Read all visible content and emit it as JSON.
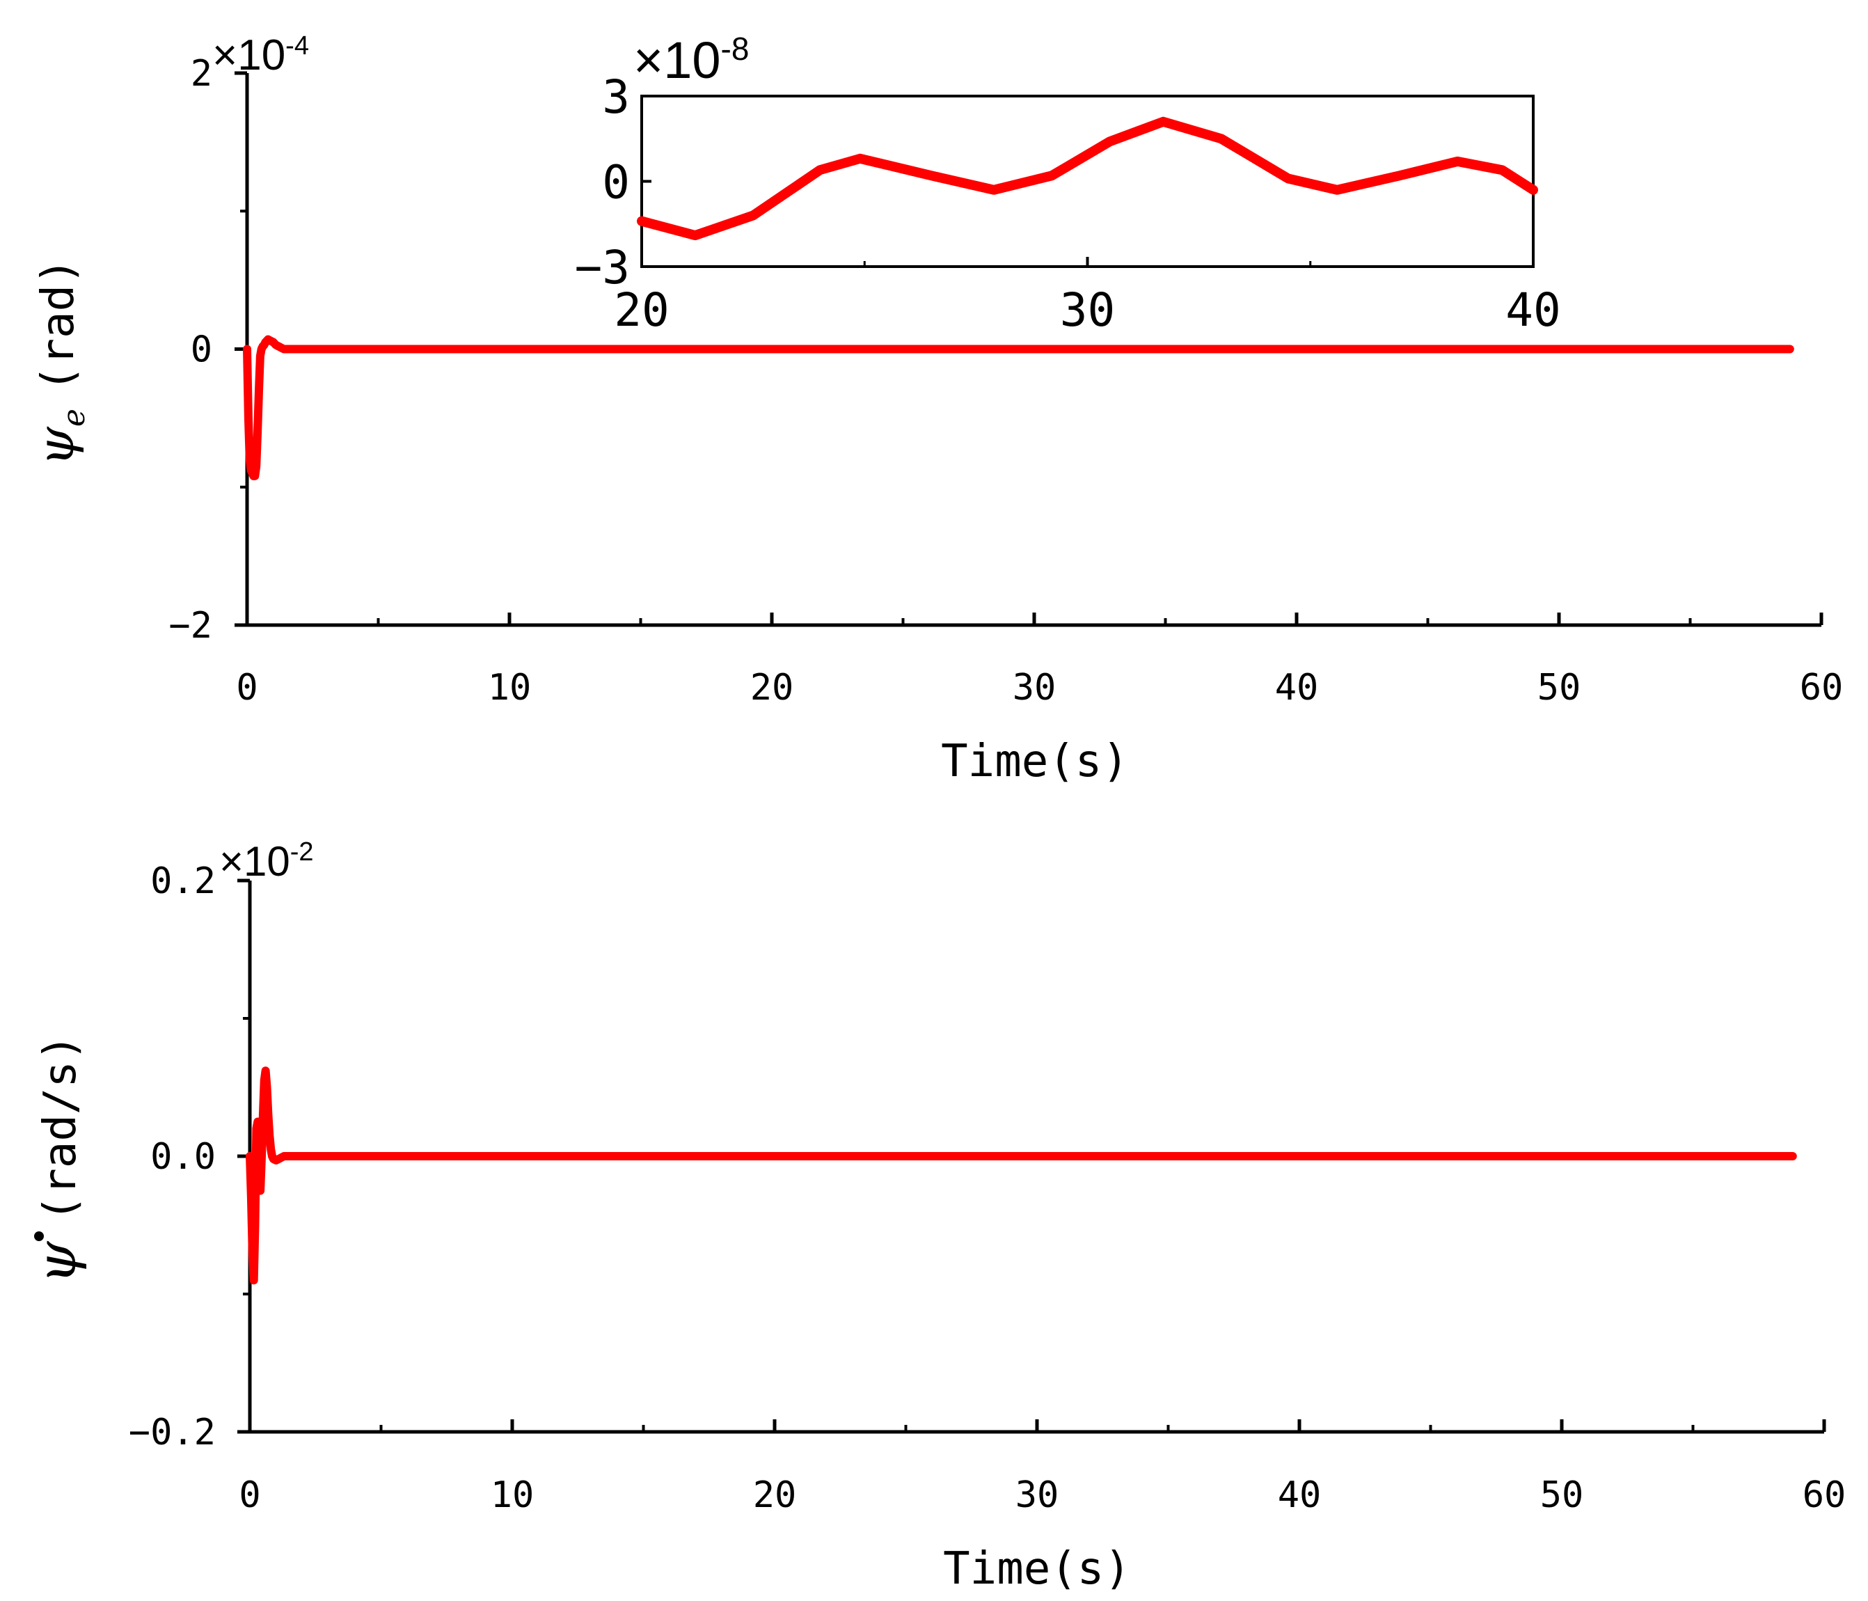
{
  "chart_data": [
    {
      "type": "line",
      "xlabel": "Time(s)",
      "ylabel_symbol": "ψ",
      "ylabel_subscript": "e",
      "ylabel_unit": "(rad)",
      "y_multiplier": "×10",
      "y_multiplier_exp": "-4",
      "xlim": [
        0,
        60
      ],
      "ylim": [
        -2,
        2
      ],
      "x_ticks": [
        "0",
        "10",
        "20",
        "30",
        "40",
        "50",
        "60"
      ],
      "y_ticks": [
        "-2",
        "0",
        "2"
      ],
      "grid": false,
      "series": [
        {
          "color": "#ff0000",
          "x": [
            0,
            0.05,
            0.1,
            0.15,
            0.2,
            0.25,
            0.3,
            0.35,
            0.4,
            0.45,
            0.5,
            0.55,
            0.6,
            0.65,
            0.7,
            0.8,
            0.9,
            1.0,
            1.1,
            1.2,
            1.4,
            1.7,
            2.0,
            5,
            10,
            20,
            30,
            40,
            50,
            58.8
          ],
          "y": [
            0,
            -0.5,
            -0.8,
            -0.88,
            -0.9,
            -0.92,
            -0.92,
            -0.85,
            -0.6,
            -0.3,
            -0.05,
            0.0,
            0.02,
            0.03,
            0.05,
            0.07,
            0.06,
            0.05,
            0.03,
            0.02,
            0.0,
            0.0,
            0.0,
            0,
            0,
            0,
            0,
            0,
            0,
            0
          ]
        }
      ],
      "inset": {
        "xlim": [
          20,
          40
        ],
        "ylim": [
          -3,
          3
        ],
        "x_ticks": [
          "20",
          "30",
          "40"
        ],
        "y_ticks": [
          "-3",
          "0",
          "3"
        ],
        "y_multiplier": "×10",
        "y_multiplier_exp": "-8",
        "series": [
          {
            "color": "#ff0000",
            "x": [
              20,
              21.2,
              22.5,
              24,
              24.9,
              26.5,
              27.9,
              29.2,
              30.5,
              31.7,
              33.0,
              34.5,
              35.6,
              37.0,
              38.3,
              39.3,
              40
            ],
            "y": [
              -1.4,
              -1.9,
              -1.2,
              0.4,
              0.8,
              0.2,
              -0.3,
              0.2,
              1.4,
              2.1,
              1.5,
              0.1,
              -0.3,
              0.2,
              0.7,
              0.4,
              -0.3
            ]
          }
        ]
      }
    },
    {
      "type": "line",
      "xlabel": "Time(s)",
      "ylabel_symbol": "ψ",
      "ylabel_unit": "(rad/s)",
      "y_multiplier": "×10",
      "y_multiplier_exp": "-2",
      "xlim": [
        0,
        60
      ],
      "ylim": [
        -0.2,
        0.2
      ],
      "x_ticks": [
        "0",
        "10",
        "20",
        "30",
        "40",
        "50",
        "60"
      ],
      "y_ticks": [
        "-0.2",
        "0.0",
        "0.2"
      ],
      "grid": false,
      "series": [
        {
          "color": "#ff0000",
          "x": [
            0,
            0.05,
            0.1,
            0.15,
            0.2,
            0.25,
            0.3,
            0.35,
            0.4,
            0.45,
            0.5,
            0.55,
            0.6,
            0.65,
            0.7,
            0.75,
            0.8,
            0.85,
            0.9,
            1.0,
            1.1,
            1.2,
            1.3,
            1.5,
            1.8,
            2.2,
            5,
            10,
            20,
            30,
            40,
            50,
            58.8
          ],
          "y": [
            0,
            -0.03,
            -0.07,
            -0.09,
            -0.05,
            0.02,
            0.025,
            0.0,
            -0.025,
            0.0,
            0.03,
            0.055,
            0.062,
            0.05,
            0.03,
            0.015,
            0.005,
            0.0,
            -0.002,
            -0.003,
            -0.002,
            -0.001,
            0.0,
            0.0,
            0.0,
            0.0,
            0,
            0,
            0,
            0,
            0,
            0,
            0
          ]
        }
      ]
    }
  ]
}
